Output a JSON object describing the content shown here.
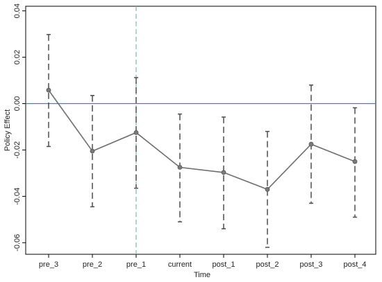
{
  "chart_data": {
    "type": "line",
    "categories": [
      "pre_3",
      "pre_2",
      "pre_1",
      "current",
      "post_1",
      "post_2",
      "post_3",
      "post_4"
    ],
    "series": [
      {
        "values": [
          0.0058,
          -0.0205,
          -0.0125,
          -0.0275,
          -0.0297,
          -0.037,
          -0.0175,
          -0.025
        ],
        "ci_lower": [
          -0.0185,
          -0.0445,
          -0.0365,
          -0.051,
          -0.054,
          -0.062,
          -0.043,
          -0.049
        ],
        "ci_upper": [
          0.0298,
          0.0035,
          0.0112,
          -0.0045,
          -0.0058,
          -0.012,
          0.008,
          -0.0018
        ]
      }
    ],
    "xlabel": "Time",
    "ylabel": "Policy Effect",
    "ylim": [
      -0.065,
      0.042
    ],
    "yticks": [
      0.04,
      0.02,
      0.0,
      -0.02,
      -0.04,
      -0.06
    ],
    "ytick_labels": [
      "0.04",
      "0.02",
      "0.00",
      "-0.02",
      "-0.04",
      "-0.06"
    ],
    "reference_line_y": 0,
    "event_line_category": "pre_1",
    "grid": false,
    "colors": {
      "line": "#6e6e6e",
      "marker": "#7a7a7a",
      "ci": "#4d4d4d",
      "zero_line": "#4f7f92",
      "event_line": "#7fb7b0",
      "axis": "#000000"
    }
  }
}
